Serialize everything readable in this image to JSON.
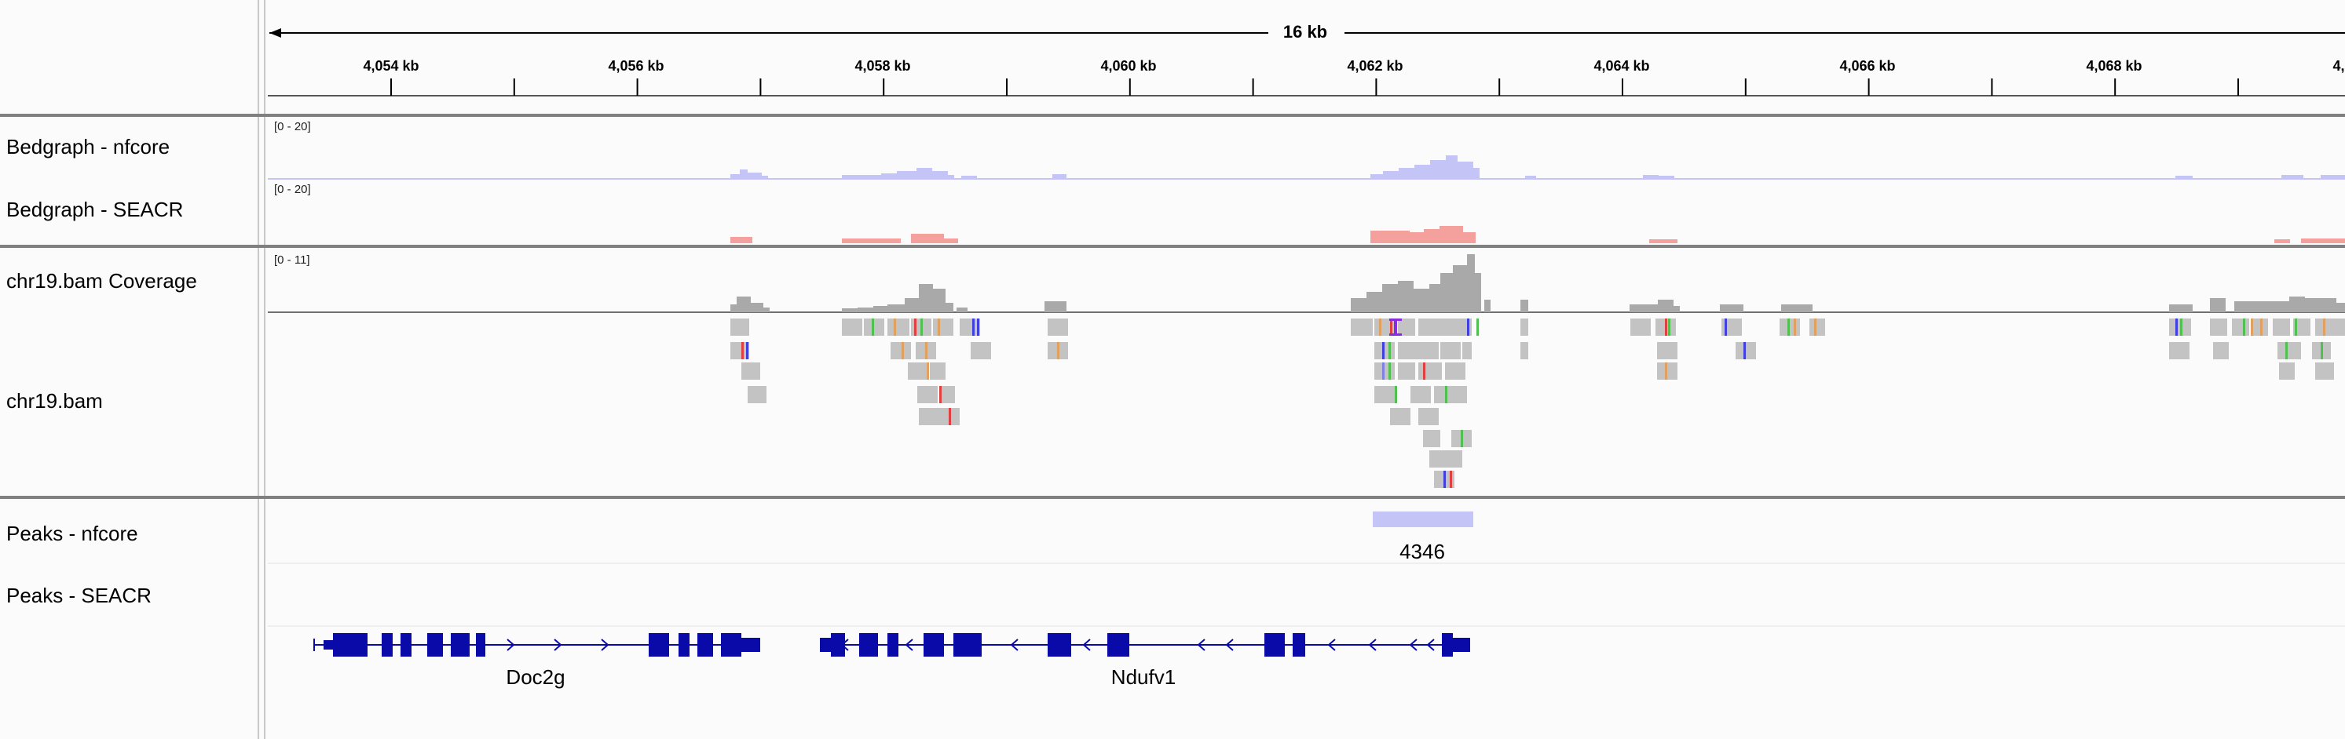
{
  "ruler": {
    "span_label": "16 kb",
    "ticks": [
      "4,054 kb",
      "4,056 kb",
      "4,058 kb",
      "4,060 kb",
      "4,062 kb",
      "4,064 kb",
      "4,066 kb",
      "4,068 kb",
      "4,"
    ]
  },
  "tracks": [
    {
      "name": "Bedgraph - nfcore",
      "range": "[0 - 20]",
      "color": "#c4c4f7"
    },
    {
      "name": "Bedgraph - SEACR",
      "range": "[0 - 20]",
      "color": "#f4a09c"
    },
    {
      "name": "chr19.bam Coverage",
      "range": "[0 - 11]",
      "color": "#a9a9a9"
    },
    {
      "name": "chr19.bam"
    },
    {
      "name": "Peaks - nfcore",
      "peak_label": "4346",
      "color": "#c4c4f7"
    },
    {
      "name": "Peaks - SEACR"
    }
  ],
  "genes": [
    {
      "name": "Doc2g",
      "strand": "+"
    },
    {
      "name": "Ndufv1",
      "strand": "-"
    }
  ],
  "gene_color": "#0a0aa8"
}
